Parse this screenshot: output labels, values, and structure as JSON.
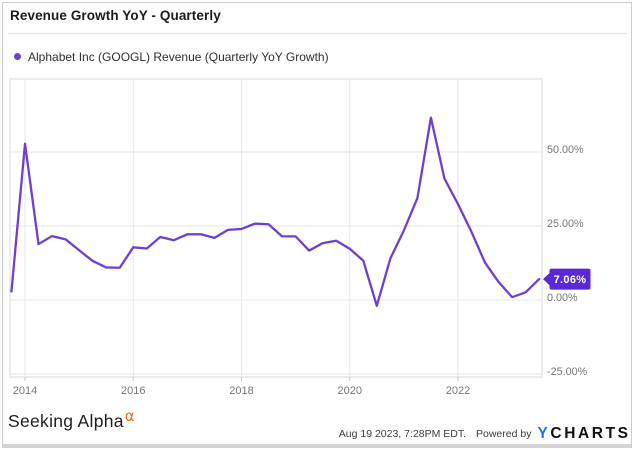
{
  "header": {
    "title": "Revenue Growth YoY - Quarterly"
  },
  "legend": {
    "marker_color": "#6e40d2",
    "label": "Alphabet Inc (GOOGL) Revenue (Quarterly YoY Growth)"
  },
  "chart_data": {
    "type": "line",
    "title": "Revenue Growth YoY - Quarterly",
    "xlabel": "",
    "ylabel": "",
    "grid": true,
    "legend_position": "top-left",
    "y_axis_side": "right",
    "line_color": "#6e40d2",
    "badge_color": "#5a28d5",
    "badge_text_color": "#ffffff",
    "grid_color": "#e7e7e7",
    "plot_border_color": "#d8d8d8",
    "tick_color": "#c9c9c9",
    "axis_text_color": "#757575",
    "xlim": [
      2013.7229,
      2023.5524
    ],
    "ylim": [
      -26.01,
      74.66
    ],
    "x_start": 2013.75,
    "x_step": 0.25,
    "x_ticks": [
      {
        "value": 2014,
        "label": "2014"
      },
      {
        "value": 2016,
        "label": "2016"
      },
      {
        "value": 2018,
        "label": "2018"
      },
      {
        "value": 2020,
        "label": "2020"
      },
      {
        "value": 2022,
        "label": "2022"
      }
    ],
    "y_ticks": [
      {
        "value": 50,
        "label": "50.00%"
      },
      {
        "value": 25,
        "label": "25.00%"
      },
      {
        "value": 0,
        "label": "0.00%"
      },
      {
        "value": -25,
        "label": "-25.00%"
      }
    ],
    "categories": [
      "2013 Q3",
      "2013 Q4",
      "2014 Q1",
      "2014 Q2",
      "2014 Q3",
      "2014 Q4",
      "2015 Q1",
      "2015 Q2",
      "2015 Q3",
      "2015 Q4",
      "2016 Q1",
      "2016 Q2",
      "2016 Q3",
      "2016 Q4",
      "2017 Q1",
      "2017 Q2",
      "2017 Q3",
      "2017 Q4",
      "2018 Q1",
      "2018 Q2",
      "2018 Q3",
      "2018 Q4",
      "2019 Q1",
      "2019 Q2",
      "2019 Q3",
      "2019 Q4",
      "2020 Q1",
      "2020 Q2",
      "2020 Q3",
      "2020 Q4",
      "2021 Q1",
      "2021 Q2",
      "2021 Q3",
      "2021 Q4",
      "2022 Q1",
      "2022 Q2",
      "2022 Q3",
      "2022 Q4",
      "2023 Q1",
      "2023 Q2"
    ],
    "series": [
      {
        "name": "Alphabet Inc (GOOGL) Revenue (Quarterly YoY Growth)",
        "values": [
          2.9,
          52.8,
          18.9,
          21.6,
          20.5,
          16.8,
          13.2,
          11.0,
          10.9,
          17.8,
          17.4,
          21.3,
          20.2,
          22.2,
          22.2,
          21.0,
          23.7,
          24.0,
          25.8,
          25.6,
          21.5,
          21.5,
          16.7,
          19.2,
          20.0,
          17.3,
          13.3,
          -1.96,
          14.0,
          23.5,
          34.4,
          61.6,
          41.0,
          32.4,
          23.0,
          12.6,
          6.1,
          0.96,
          2.6,
          7.06
        ]
      }
    ],
    "last_value_label": "7.06%"
  },
  "footer": {
    "brand": "Seeking Alpha",
    "brand_mark": "α",
    "timestamp": "Aug 19 2023, 7:28PM EDT.",
    "powered_by": "Powered by",
    "logo_y": "Y",
    "logo_charts": "CHARTS"
  }
}
